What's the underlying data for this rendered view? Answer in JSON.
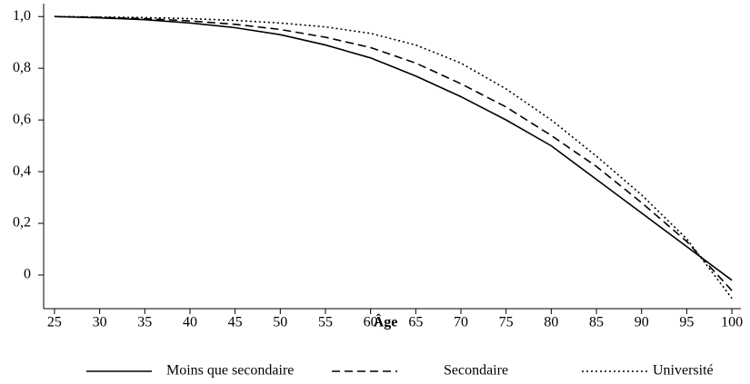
{
  "chart_data": {
    "type": "line",
    "x_label": "Âge",
    "x": [
      25,
      30,
      35,
      40,
      45,
      50,
      55,
      60,
      65,
      70,
      75,
      80,
      85,
      90,
      95,
      100
    ],
    "series": [
      {
        "name": "Moins que secondaire",
        "color": "#000000",
        "dash": "solid",
        "values": [
          1.0,
          0.995,
          0.988,
          0.975,
          0.957,
          0.93,
          0.89,
          0.84,
          0.77,
          0.69,
          0.6,
          0.5,
          0.37,
          0.24,
          0.11,
          -0.02
        ]
      },
      {
        "name": "Secondaire",
        "color": "#000000",
        "dash": "dashed",
        "values": [
          1.0,
          0.997,
          0.992,
          0.983,
          0.97,
          0.95,
          0.92,
          0.88,
          0.82,
          0.74,
          0.65,
          0.54,
          0.42,
          0.28,
          0.13,
          -0.06
        ]
      },
      {
        "name": "Université",
        "color": "#000000",
        "dash": "dotted",
        "values": [
          1.0,
          0.998,
          0.996,
          0.992,
          0.985,
          0.975,
          0.96,
          0.935,
          0.89,
          0.82,
          0.72,
          0.6,
          0.46,
          0.31,
          0.14,
          -0.09
        ]
      }
    ],
    "xlim": [
      23.8,
      101
    ],
    "xticks": [
      25,
      30,
      35,
      40,
      45,
      50,
      55,
      60,
      65,
      70,
      75,
      80,
      85,
      90,
      95,
      100
    ],
    "ylim": [
      -0.13,
      1.05
    ],
    "yticks": [
      0,
      {
        "value": 0.2,
        "label": "0,2"
      },
      {
        "value": 0.4,
        "label": "0,4"
      },
      {
        "value": 0.6,
        "label": "0,6"
      },
      {
        "value": 0.8,
        "label": "0,8"
      },
      {
        "value": 1.0,
        "label": "1,0"
      }
    ],
    "grid": false,
    "legend": "bottom"
  }
}
